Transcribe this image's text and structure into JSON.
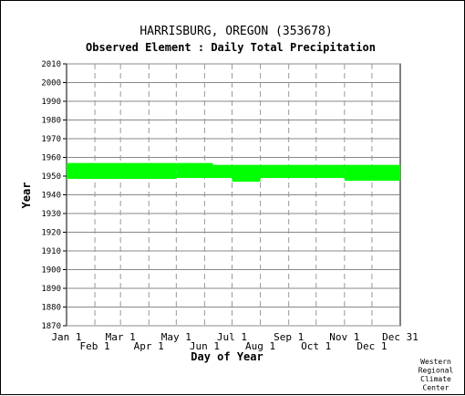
{
  "chart_data": {
    "type": "bar",
    "title": "HARRISBURG, OREGON   (353678)",
    "subtitle": "Observed Element : Daily Total Precipitation",
    "xlabel": "Day of Year",
    "ylabel": "Year",
    "ylim": [
      1870,
      2010
    ],
    "yticks": [
      2010,
      2000,
      1990,
      1980,
      1970,
      1960,
      1950,
      1940,
      1930,
      1920,
      1910,
      1900,
      1890,
      1880,
      1870
    ],
    "xticks_top": [
      "Jan 1",
      "Mar 1",
      "May 1",
      "Jul 1",
      "Sep 1",
      "Nov 1",
      "Dec 31"
    ],
    "xticks_bottom": [
      "Feb 1",
      "Apr 1",
      "Jun 1",
      "Aug 1",
      "Oct 1",
      "Dec 1"
    ],
    "xlim_day": [
      1,
      366
    ],
    "grid": true,
    "color": "#00ff00",
    "series": [
      {
        "start_day": 1,
        "end_day": 121,
        "y_from": 1948.5,
        "y_to": 1957
      },
      {
        "start_day": 121,
        "end_day": 161,
        "y_from": 1949,
        "y_to": 1957
      },
      {
        "start_day": 161,
        "end_day": 182,
        "y_from": 1949,
        "y_to": 1956
      },
      {
        "start_day": 182,
        "end_day": 213,
        "y_from": 1947,
        "y_to": 1956
      },
      {
        "start_day": 213,
        "end_day": 305,
        "y_from": 1949,
        "y_to": 1956
      },
      {
        "start_day": 305,
        "end_day": 366,
        "y_from": 1947.5,
        "y_to": 1956
      }
    ]
  },
  "credit": [
    "Western",
    "Regional",
    "Climate",
    "Center"
  ]
}
